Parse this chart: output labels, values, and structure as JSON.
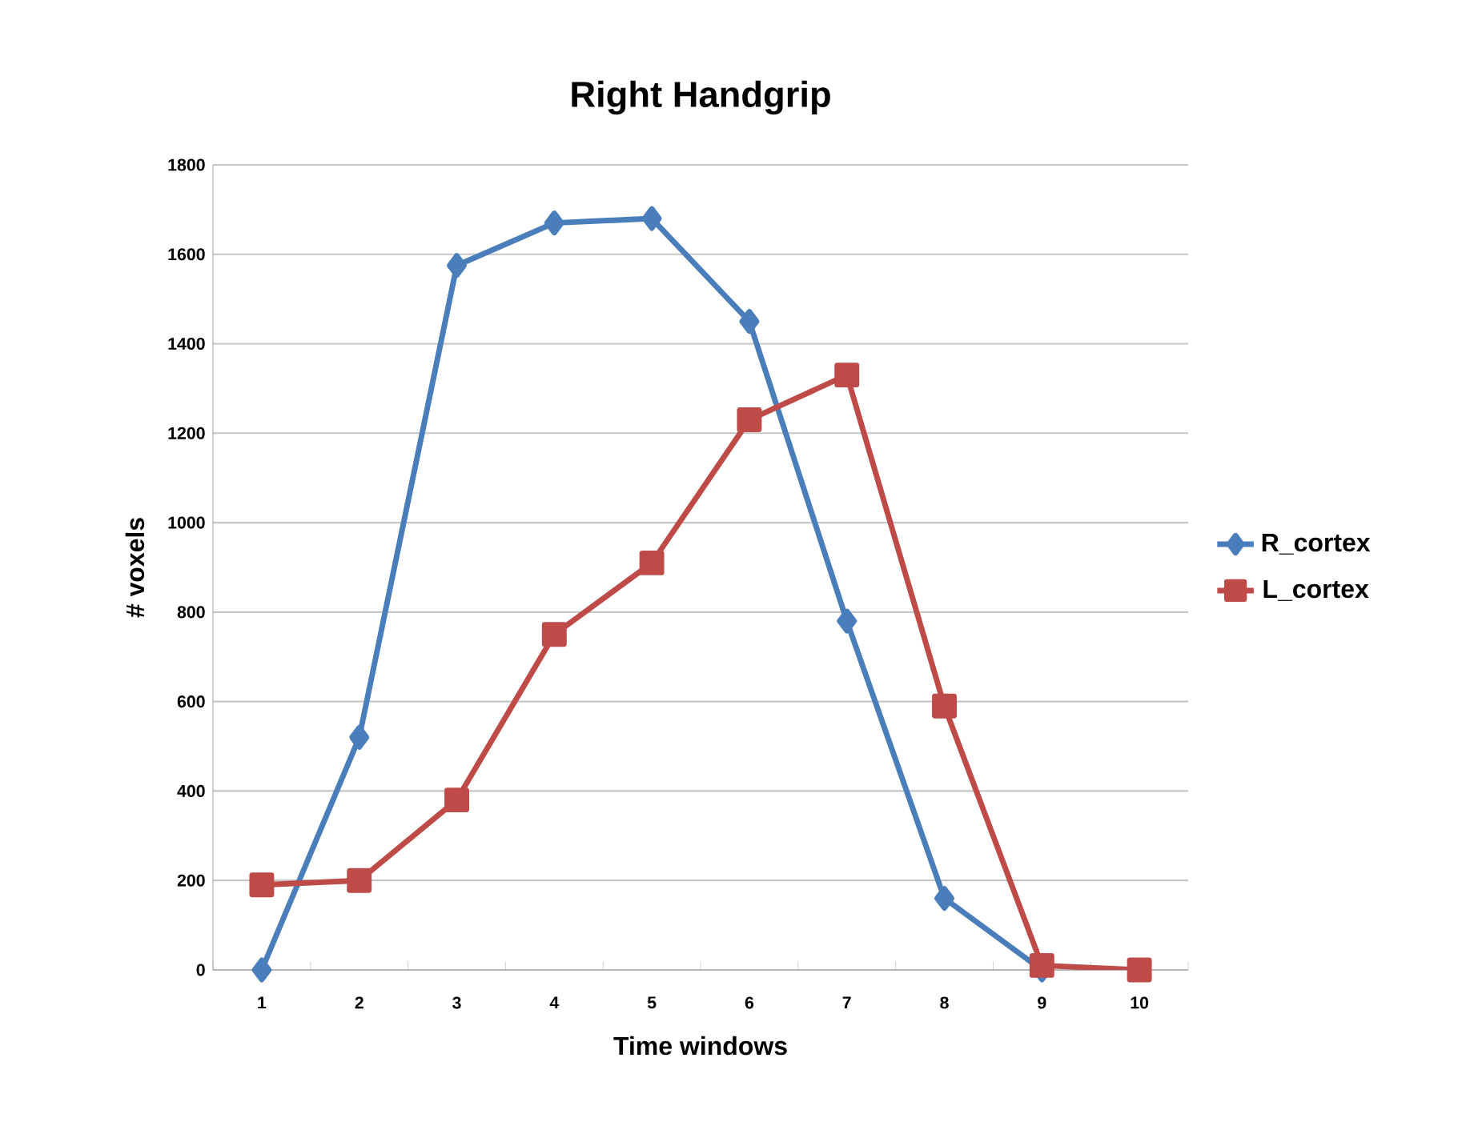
{
  "chart_data": {
    "type": "line",
    "title": "Right Handgrip",
    "xlabel": "Time windows",
    "ylabel": "# voxels",
    "categories": [
      "1",
      "2",
      "3",
      "4",
      "5",
      "6",
      "7",
      "8",
      "9",
      "10"
    ],
    "series": [
      {
        "name": "R_cortex",
        "color": "#4a7ebb",
        "marker": "diamond",
        "values": [
          0,
          520,
          1575,
          1670,
          1680,
          1450,
          780,
          160,
          0,
          null
        ]
      },
      {
        "name": "L_cortex",
        "color": "#be4b48",
        "marker": "square",
        "values": [
          190,
          200,
          380,
          750,
          910,
          1230,
          1330,
          590,
          10,
          0
        ]
      }
    ],
    "ylim": [
      0,
      1800
    ],
    "yticks": [
      0,
      200,
      400,
      600,
      800,
      1000,
      1200,
      1400,
      1600,
      1800
    ],
    "grid": "y",
    "legend": "right"
  }
}
